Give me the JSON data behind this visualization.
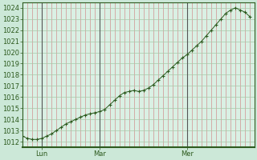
{
  "bg_color": "#cce8d8",
  "plot_bg_color": "#daf0e4",
  "line_color": "#2d5a1e",
  "marker_color": "#2d5a1e",
  "vline_color": "#555555",
  "red_grid_color": "#d09090",
  "green_grid_color": "#a8c8a8",
  "ylim": [
    1011.5,
    1024.5
  ],
  "yticks": [
    1012,
    1013,
    1014,
    1015,
    1016,
    1017,
    1018,
    1019,
    1020,
    1021,
    1022,
    1023,
    1024
  ],
  "xtick_labels": [
    "Lun",
    "Mar",
    "Mer"
  ],
  "xtick_positions": [
    8,
    32,
    68
  ],
  "vline_positions": [
    8,
    32,
    68
  ],
  "xlim": [
    0,
    96
  ],
  "x_values": [
    0,
    2,
    4,
    6,
    8,
    10,
    12,
    14,
    16,
    18,
    20,
    22,
    24,
    26,
    28,
    30,
    32,
    34,
    36,
    38,
    40,
    42,
    44,
    46,
    48,
    50,
    52,
    54,
    56,
    58,
    60,
    62,
    64,
    66,
    68,
    70,
    72,
    74,
    76,
    78,
    80,
    82,
    84,
    86,
    88,
    90,
    92,
    94
  ],
  "y_values": [
    1012.5,
    1012.3,
    1012.2,
    1012.2,
    1012.3,
    1012.5,
    1012.7,
    1013.0,
    1013.3,
    1013.6,
    1013.8,
    1014.0,
    1014.2,
    1014.4,
    1014.5,
    1014.6,
    1014.7,
    1014.9,
    1015.3,
    1015.7,
    1016.1,
    1016.4,
    1016.5,
    1016.6,
    1016.5,
    1016.6,
    1016.8,
    1017.1,
    1017.5,
    1017.9,
    1018.3,
    1018.7,
    1019.1,
    1019.5,
    1019.8,
    1020.2,
    1020.6,
    1021.0,
    1021.5,
    1022.0,
    1022.5,
    1023.0,
    1023.5,
    1023.8,
    1024.0,
    1023.8,
    1023.6,
    1023.2
  ],
  "xlabel_color": "#2d5a1e",
  "ylabel_color": "#2d5a1e",
  "tick_fontsize": 6,
  "border_color": "#2d5a1e"
}
